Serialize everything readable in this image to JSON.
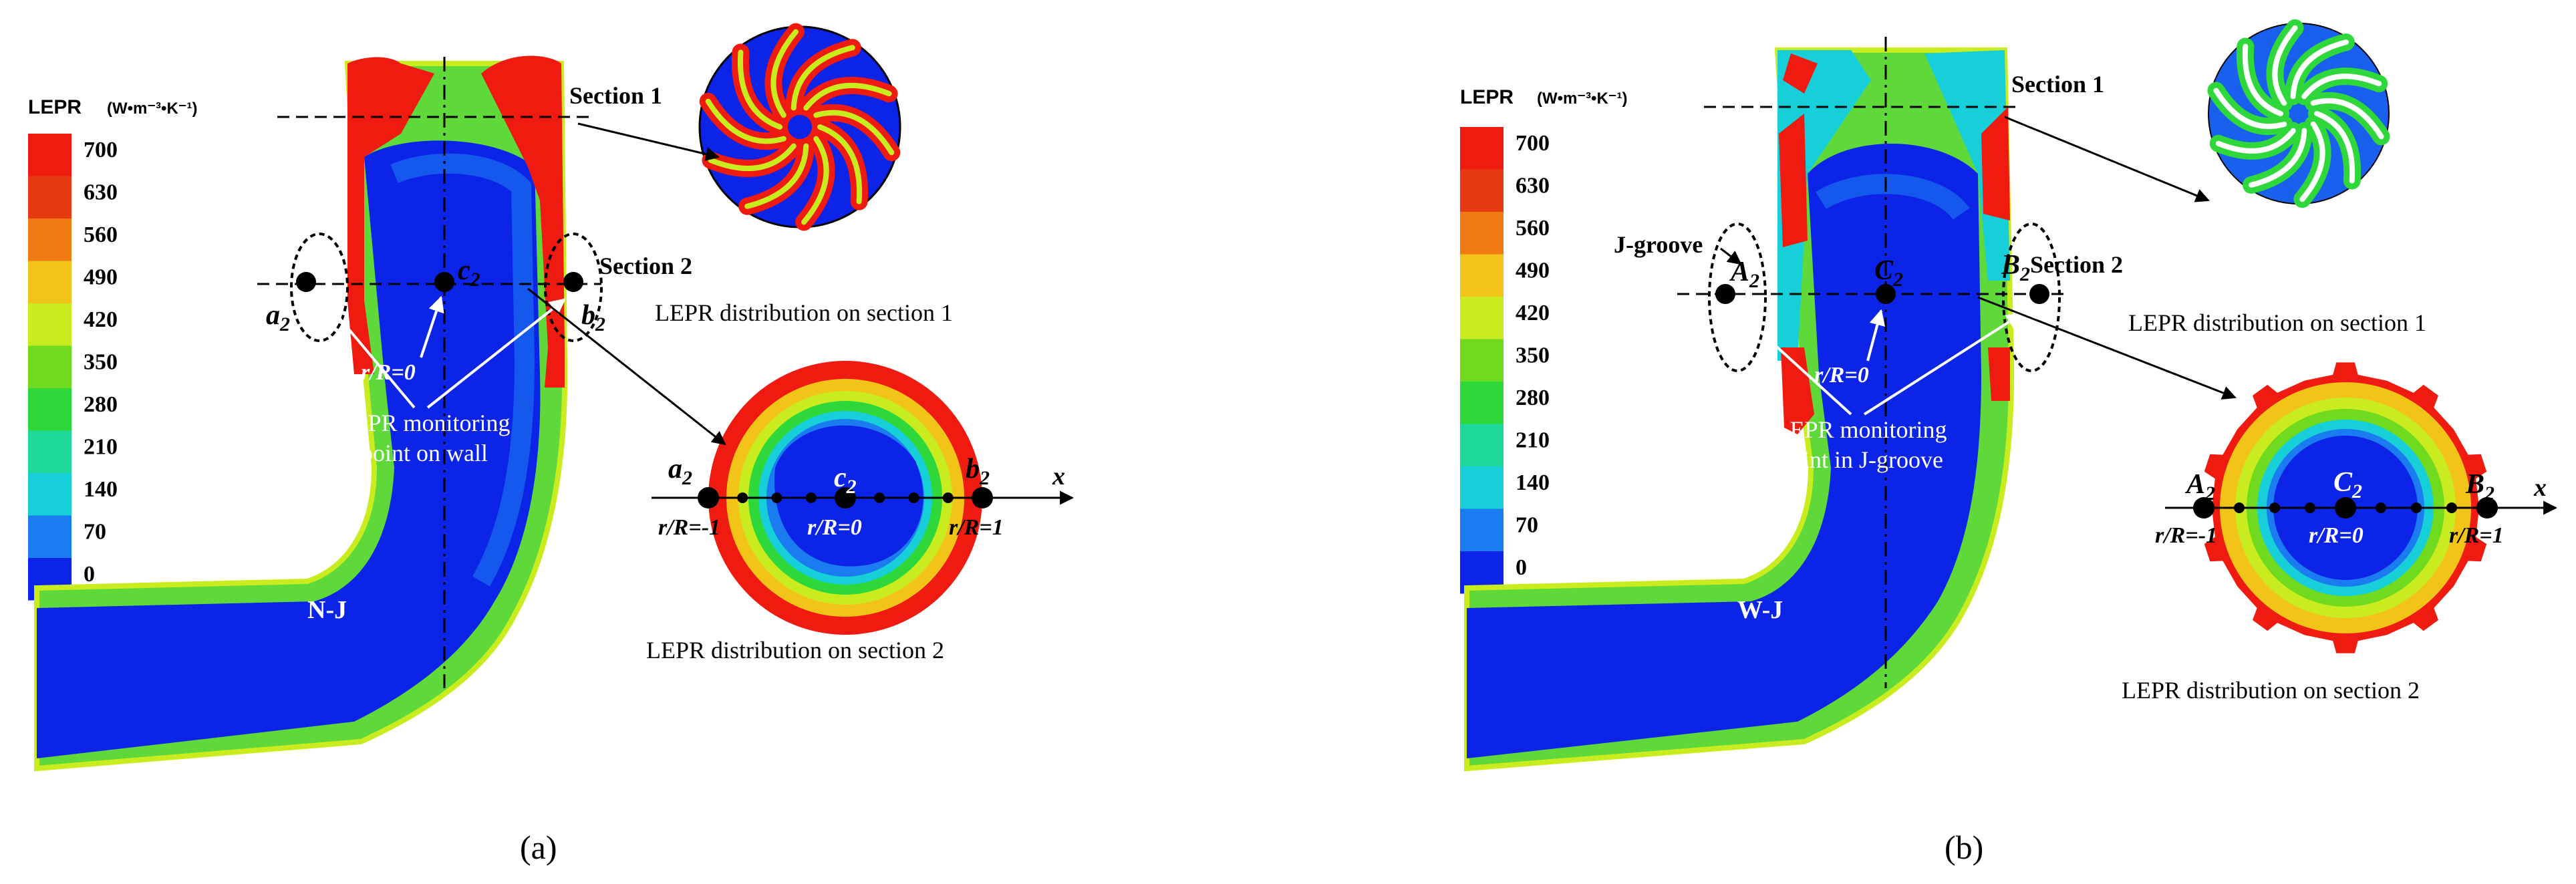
{
  "legend": {
    "title": "LEPR",
    "unit": "(W•m⁻³•K⁻¹)",
    "levels": [
      "700",
      "630",
      "560",
      "490",
      "420",
      "350",
      "280",
      "210",
      "140",
      "70",
      "0"
    ],
    "colors": [
      "#ef1a10",
      "#e83a12",
      "#f07a12",
      "#f2c418",
      "#c8ec1e",
      "#6fda1e",
      "#2fd83a",
      "#1ed99a",
      "#16cfd8",
      "#1a7cf0",
      "#0b24e8"
    ]
  },
  "panel_a": {
    "caption": "(a)",
    "section1_label": "Section 1",
    "section2_label": "Section 2",
    "section1_caption": "LEPR distribution on section 1",
    "section2_caption": "LEPR distribution on section 2",
    "model_label": "N-J",
    "monitor_text_1": "LEPR monitoring",
    "monitor_text_2": "point on wall",
    "point_left": "a",
    "point_center": "c",
    "point_right": "b",
    "subscript": "2",
    "r_center": "r/R=0",
    "r_left": "r/R=-1",
    "r_right": "r/R=1",
    "axis_x": "x"
  },
  "panel_b": {
    "caption": "(b)",
    "section1_label": "Section 1",
    "section2_label": "Section 2",
    "section1_caption": "LEPR distribution on section 1",
    "section2_caption": "LEPR distribution on section 2",
    "model_label": "W-J",
    "groove_label": "J-groove",
    "monitor_text_1": "LEPR monitoring",
    "monitor_text_2": "point in J-groove",
    "point_left": "A",
    "point_center": "C",
    "point_right": "B",
    "subscript": "2",
    "r_center": "r/R=0",
    "r_left": "r/R=-1",
    "r_right": "r/R=1",
    "axis_x": "x"
  }
}
